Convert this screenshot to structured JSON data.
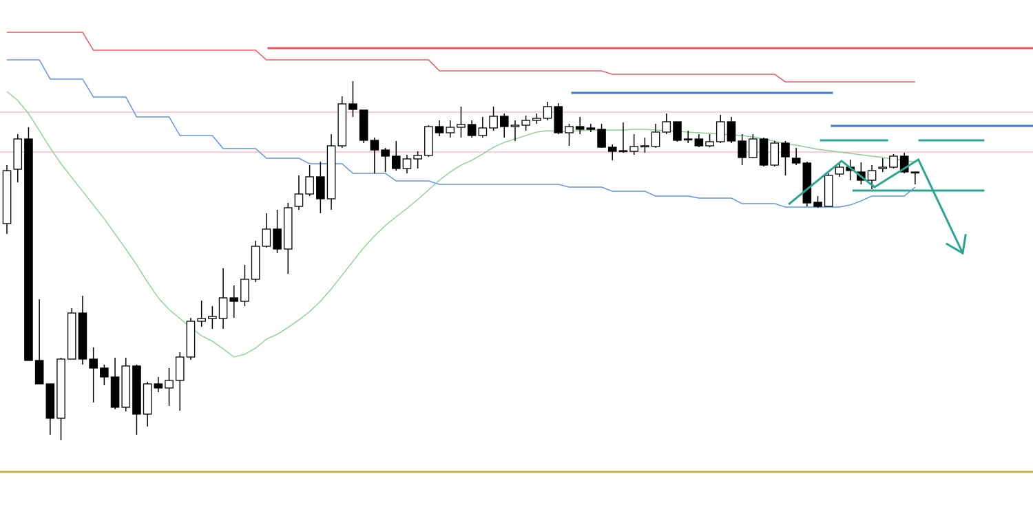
{
  "chart_data": {
    "type": "candlestick",
    "xlim": [
      -0.64,
      94.9
    ],
    "ylim": [
      0,
      753
    ],
    "open": [
      428,
      507,
      551,
      229,
      195,
      145,
      231,
      298,
      231,
      218,
      205,
      161,
      221,
      151,
      195,
      189,
      200,
      234,
      286,
      290,
      290,
      320,
      315,
      347,
      395,
      420,
      391,
      453,
      471,
      496,
      464,
      541,
      602,
      593,
      549,
      535,
      526,
      508,
      522,
      527,
      569,
      560,
      568,
      572,
      556,
      567,
      584,
      569,
      571,
      578,
      581,
      598,
      560,
      569,
      567,
      565,
      539,
      533,
      533,
      540,
      540,
      561,
      576,
      551,
      551,
      541,
      547,
      576,
      548,
      524,
      551,
      513,
      545,
      523,
      516,
      459,
      453,
      500,
      510,
      503,
      491,
      508,
      510,
      526,
      503
    ],
    "high": [
      513,
      558,
      568,
      318,
      195,
      233,
      305,
      323,
      248,
      223,
      233,
      233,
      223,
      198,
      205,
      218,
      241,
      291,
      316,
      308,
      363,
      338,
      368,
      403,
      443,
      448,
      458,
      498,
      513,
      518,
      558,
      613,
      635,
      593,
      553,
      538,
      548,
      528,
      533,
      571,
      578,
      578,
      598,
      578,
      583,
      598,
      588,
      578,
      585,
      588,
      605,
      603,
      573,
      583,
      573,
      573,
      543,
      575,
      558,
      553,
      573,
      588,
      576,
      563,
      558,
      558,
      586,
      583,
      558,
      558,
      553,
      548,
      548,
      538,
      518,
      468,
      501,
      518,
      521,
      517,
      513,
      523,
      529,
      531,
      503
    ],
    "low": [
      413,
      488,
      229,
      195,
      121,
      113,
      231,
      223,
      168,
      193,
      158,
      155,
      121,
      133,
      183,
      163,
      156,
      230,
      278,
      275,
      275,
      291,
      308,
      343,
      393,
      385,
      355,
      448,
      468,
      443,
      448,
      538,
      583,
      545,
      501,
      503,
      505,
      501,
      508,
      525,
      555,
      553,
      553,
      553,
      553,
      563,
      553,
      548,
      563,
      573,
      578,
      558,
      541,
      558,
      561,
      538,
      520,
      531,
      528,
      531,
      538,
      558,
      547,
      545,
      539,
      539,
      545,
      545,
      513,
      523,
      511,
      511,
      498,
      513,
      453,
      451,
      453,
      496,
      491,
      485,
      478,
      503,
      508,
      501,
      485
    ],
    "close": [
      505,
      551,
      229,
      195,
      145,
      231,
      298,
      231,
      218,
      205,
      161,
      221,
      151,
      195,
      189,
      200,
      234,
      286,
      290,
      293,
      320,
      315,
      347,
      395,
      420,
      391,
      451,
      471,
      496,
      464,
      541,
      602,
      594,
      549,
      535,
      526,
      508,
      522,
      527,
      569,
      560,
      568,
      572,
      556,
      567,
      584,
      569,
      571,
      578,
      581,
      598,
      560,
      569,
      565,
      565,
      539,
      533,
      534,
      540,
      541,
      561,
      576,
      549,
      550,
      541,
      547,
      576,
      548,
      524,
      551,
      513,
      545,
      525,
      516,
      458,
      453,
      498,
      510,
      505,
      491,
      505,
      510,
      526,
      503,
      502
    ],
    "up_color": "#ffffff",
    "down_color": "#000000",
    "series": [
      {
        "color": "#f0505a",
        "values": [
          706,
          706,
          706,
          706,
          706,
          706,
          706,
          706,
          680,
          680,
          680,
          680,
          680,
          680,
          680,
          680,
          680,
          680,
          680,
          680,
          680,
          680,
          680,
          680,
          666,
          666,
          666,
          666,
          666,
          666,
          666,
          666,
          666,
          666,
          666,
          666,
          666,
          666,
          666,
          666,
          650,
          650,
          650,
          650,
          650,
          650,
          650,
          650,
          650,
          650,
          650,
          650,
          650,
          650,
          650,
          650,
          645,
          645,
          645,
          645,
          645,
          645,
          645,
          645,
          645,
          645,
          645,
          645,
          645,
          645,
          645,
          645,
          634,
          634,
          634,
          634,
          634,
          634,
          634,
          634,
          634,
          634,
          634,
          634,
          634
        ]
      },
      {
        "color": "#5b8ff0",
        "values": [
          666,
          666,
          666,
          666,
          638,
          638,
          638,
          638,
          612,
          612,
          612,
          612,
          583,
          583,
          583,
          583,
          556,
          556,
          556,
          556,
          537,
          537,
          537,
          537,
          523,
          523,
          523,
          523,
          515,
          515,
          515,
          515,
          501,
          501,
          501,
          501,
          490,
          490,
          490,
          490,
          485,
          485,
          485,
          485,
          485,
          485,
          485,
          485,
          485,
          485,
          485,
          485,
          481,
          481,
          481,
          481,
          475,
          475,
          475,
          475,
          468,
          468,
          468,
          468,
          465,
          465,
          465,
          465,
          457,
          457,
          457,
          457,
          452,
          452,
          452,
          452,
          452,
          452,
          455,
          461,
          468,
          468,
          468,
          468,
          481
        ]
      },
      {
        "color": "#8ccf96",
        "values": [
          620,
          607,
          588,
          563,
          538,
          515,
          495,
          475,
          455,
          435,
          413,
          391,
          368,
          343,
          320,
          303,
          290,
          277,
          265,
          257,
          246,
          234,
          238,
          247,
          260,
          267,
          277,
          288,
          300,
          315,
          333,
          353,
          373,
          393,
          410,
          425,
          438,
          450,
          463,
          477,
          491,
          503,
          513,
          520,
          529,
          539,
          546,
          551,
          556,
          561,
          563,
          562,
          562,
          563,
          564,
          564,
          564,
          564,
          565,
          565,
          564,
          563,
          562,
          561,
          560,
          559,
          558,
          557,
          556,
          554,
          551,
          548,
          544,
          542,
          539,
          536,
          534,
          532,
          530,
          528,
          526,
          524,
          522,
          520,
          517
        ]
      }
    ],
    "levels": [
      {
        "value": 590,
        "color": "#f7b0c0"
      },
      {
        "value": 532,
        "color": "#f7b0c0"
      },
      {
        "value": 683,
        "color": "#f0505a",
        "from": 24.1
      },
      {
        "value": 618,
        "color": "#3a78e0",
        "from": 52.2,
        "to": 76.4
      },
      {
        "value": 570,
        "color": "#3a78e0",
        "from": 76.2
      },
      {
        "value": 549,
        "color": "#2aa58f",
        "from": 75.2,
        "to": 81.5
      },
      {
        "value": 549,
        "color": "#2aa58f",
        "from": 84.3,
        "to": 90.4
      },
      {
        "value": 476,
        "color": "#2aa58f",
        "from": 78.2,
        "to": 90.4
      },
      {
        "value": 67,
        "color": "#c8b43c"
      }
    ],
    "annotation": {
      "color": "#2aa58f",
      "x": [
        72.3,
        77.2,
        80.25,
        84.3,
        88.4
      ],
      "y": [
        456,
        519,
        481,
        521,
        385
      ]
    }
  }
}
